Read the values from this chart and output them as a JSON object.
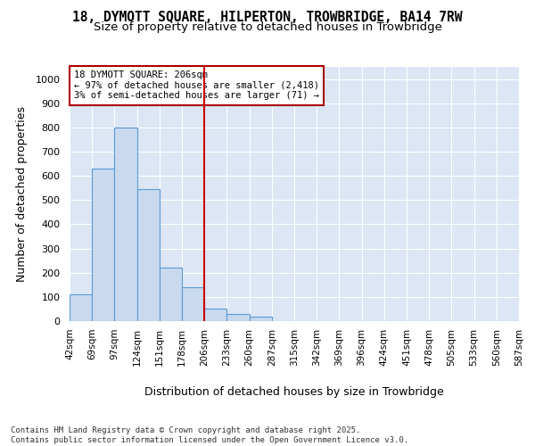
{
  "title_line1": "18, DYMOTT SQUARE, HILPERTON, TROWBRIDGE, BA14 7RW",
  "title_line2": "Size of property relative to detached houses in Trowbridge",
  "xlabel": "Distribution of detached houses by size in Trowbridge",
  "ylabel": "Number of detached properties",
  "annotation_line1": "18 DYMOTT SQUARE: 206sqm",
  "annotation_line2": "← 97% of detached houses are smaller (2,418)",
  "annotation_line3": "3% of semi-detached houses are larger (71) →",
  "bar_color": "#c9daee",
  "bar_edge_color": "#5b9bd5",
  "vline_color": "#cc0000",
  "annotation_box_edgecolor": "#aa0000",
  "bins": [
    "42sqm",
    "69sqm",
    "97sqm",
    "124sqm",
    "151sqm",
    "178sqm",
    "206sqm",
    "233sqm",
    "260sqm",
    "287sqm",
    "315sqm",
    "342sqm",
    "369sqm",
    "396sqm",
    "424sqm",
    "451sqm",
    "478sqm",
    "505sqm",
    "533sqm",
    "560sqm",
    "587sqm"
  ],
  "values": [
    110,
    630,
    800,
    545,
    220,
    140,
    50,
    30,
    20,
    0,
    0,
    0,
    0,
    0,
    0,
    0,
    0,
    0,
    0,
    0
  ],
  "ylim": [
    0,
    1050
  ],
  "yticks": [
    0,
    100,
    200,
    300,
    400,
    500,
    600,
    700,
    800,
    900,
    1000
  ],
  "background_color": "#dce6f5",
  "footer": "Contains HM Land Registry data © Crown copyright and database right 2025.\nContains public sector information licensed under the Open Government Licence v3.0."
}
